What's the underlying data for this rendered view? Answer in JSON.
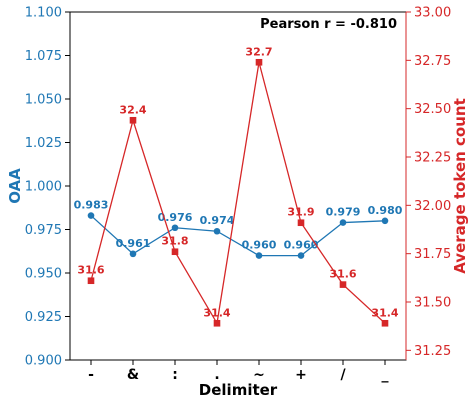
{
  "chart_data": {
    "type": "line",
    "annotation": "Pearson r = -0.810",
    "xlabel": "Delimiter",
    "categories": [
      "-",
      "&",
      ":",
      ".",
      "~",
      "+",
      "/",
      "_"
    ],
    "series": [
      {
        "name": "OAA",
        "axis": "left",
        "color": "#1f77b4",
        "marker": "circle",
        "values": [
          0.983,
          0.961,
          0.976,
          0.974,
          0.96,
          0.96,
          0.979,
          0.98
        ],
        "labels": [
          "0.983",
          "0.961",
          "0.976",
          "0.974",
          "0.960",
          "0.960",
          "0.979",
          "0.980"
        ]
      },
      {
        "name": "Average token count",
        "axis": "right",
        "color": "#d62728",
        "marker": "square",
        "values": [
          31.61,
          32.44,
          31.76,
          31.39,
          32.74,
          31.91,
          31.59,
          31.39
        ],
        "labels": [
          "31.6",
          "32.4",
          "31.8",
          "31.4",
          "32.7",
          "31.9",
          "31.6",
          "31.4"
        ]
      }
    ],
    "y_left": {
      "label": "OAA",
      "ylim": [
        0.9,
        1.1
      ],
      "ticks": [
        "0.900",
        "0.925",
        "0.950",
        "0.975",
        "1.000",
        "1.025",
        "1.050",
        "1.075",
        "1.100"
      ],
      "color": "#1f77b4"
    },
    "y_right": {
      "label": "Average token count",
      "ylim": [
        31.2,
        33.0
      ],
      "ticks": [
        "31.25",
        "31.50",
        "31.75",
        "32.00",
        "32.25",
        "32.50",
        "32.75",
        "33.00"
      ],
      "color": "#d62728"
    },
    "grid": false
  }
}
